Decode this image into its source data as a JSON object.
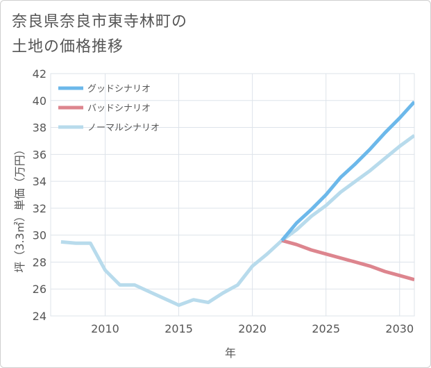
{
  "title": {
    "line1": "奈良県奈良市東寺林町の",
    "line2": "土地の価格推移"
  },
  "colors": {
    "good": "#6cb8ea",
    "bad": "#dd858e",
    "normal": "#b8dbec",
    "grid": "#dde3ea",
    "axis_text": "#555555"
  },
  "chart_data": {
    "type": "line",
    "title": "奈良県奈良市東寺林町の土地の価格推移",
    "xlabel": "年",
    "ylabel": "坪（3.3㎡）単価（万円）",
    "xlim": [
      2006.3,
      2031
    ],
    "ylim": [
      24,
      42
    ],
    "xticks": [
      2010,
      2015,
      2020,
      2025,
      2030
    ],
    "yticks": [
      24,
      26,
      28,
      30,
      32,
      34,
      36,
      38,
      40,
      42
    ],
    "legend_position": "top-left",
    "grid": true,
    "series": [
      {
        "key": "good",
        "name": "グッドシナリオ",
        "x": [
          2022,
          2023,
          2024,
          2025,
          2026,
          2027,
          2028,
          2029,
          2030,
          2031
        ],
        "values": [
          29.6,
          30.9,
          31.9,
          33.0,
          34.3,
          35.3,
          36.4,
          37.6,
          38.7,
          39.9
        ]
      },
      {
        "key": "bad",
        "name": "バッドシナリオ",
        "x": [
          2022,
          2023,
          2024,
          2025,
          2026,
          2027,
          2028,
          2029,
          2030,
          2031
        ],
        "values": [
          29.6,
          29.3,
          28.9,
          28.6,
          28.3,
          28.0,
          27.7,
          27.3,
          27.0,
          26.7
        ]
      },
      {
        "key": "normal",
        "name": "ノーマルシナリオ",
        "x": [
          2007,
          2008,
          2009,
          2010,
          2011,
          2012,
          2013,
          2014,
          2015,
          2016,
          2017,
          2018,
          2019,
          2020,
          2021,
          2022,
          2023,
          2024,
          2025,
          2026,
          2027,
          2028,
          2029,
          2030,
          2031
        ],
        "values": [
          29.5,
          29.4,
          29.4,
          27.4,
          26.3,
          26.3,
          25.8,
          25.3,
          24.8,
          25.2,
          25.0,
          25.7,
          26.3,
          27.7,
          28.6,
          29.6,
          30.4,
          31.4,
          32.2,
          33.2,
          34.0,
          34.8,
          35.7,
          36.6,
          37.4
        ]
      }
    ]
  }
}
